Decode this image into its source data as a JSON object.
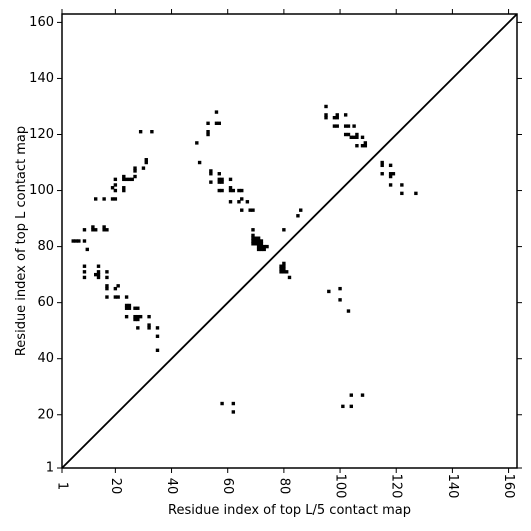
{
  "chart_data": {
    "type": "scatter",
    "title": "",
    "xlabel": "Residue index of top L/5 contact map",
    "ylabel": "Residue index of top L contact map",
    "xlim": [
      1,
      163
    ],
    "ylim": [
      1,
      163
    ],
    "xticks": [
      1,
      20,
      40,
      60,
      80,
      100,
      120,
      140,
      160
    ],
    "yticks": [
      1,
      20,
      40,
      60,
      80,
      100,
      120,
      140,
      160
    ],
    "xtick_labels": [
      "1",
      "20",
      "40",
      "60",
      "80",
      "100",
      "120",
      "140",
      "160"
    ],
    "ytick_labels": [
      "1",
      "20",
      "40",
      "60",
      "80",
      "100",
      "120",
      "140",
      "160"
    ],
    "grid": false,
    "diagonal": [
      [
        1,
        1
      ],
      [
        163,
        163
      ]
    ],
    "marker_color": "#000000",
    "series": [
      {
        "values": [
          [
            5,
            82
          ],
          [
            6,
            82
          ],
          [
            7,
            82
          ],
          [
            9,
            82
          ],
          [
            9,
            86
          ],
          [
            9,
            73
          ],
          [
            9,
            71
          ],
          [
            9,
            69
          ],
          [
            10,
            79
          ],
          [
            12,
            87
          ],
          [
            12,
            86
          ],
          [
            13,
            86
          ],
          [
            13,
            97
          ],
          [
            14,
            73
          ],
          [
            14,
            71
          ],
          [
            14,
            70
          ],
          [
            14,
            69
          ],
          [
            13,
            70
          ],
          [
            16,
            97
          ],
          [
            16,
            87
          ],
          [
            16,
            86
          ],
          [
            17,
            86
          ],
          [
            17,
            71
          ],
          [
            17,
            69
          ],
          [
            17,
            66
          ],
          [
            17,
            65
          ],
          [
            17,
            62
          ],
          [
            19,
            101
          ],
          [
            20,
            102
          ],
          [
            20,
            100
          ],
          [
            19,
            97
          ],
          [
            20,
            97
          ],
          [
            20,
            104
          ],
          [
            20,
            65
          ],
          [
            21,
            66
          ],
          [
            20,
            62
          ],
          [
            21,
            62
          ],
          [
            23,
            105
          ],
          [
            23,
            104
          ],
          [
            23,
            101
          ],
          [
            23,
            100
          ],
          [
            24,
            104
          ],
          [
            25,
            104
          ],
          [
            26,
            104
          ],
          [
            27,
            105
          ],
          [
            27,
            107
          ],
          [
            27,
            108
          ],
          [
            24,
            62
          ],
          [
            24,
            59
          ],
          [
            24,
            58
          ],
          [
            25,
            59
          ],
          [
            25,
            58
          ],
          [
            24,
            55
          ],
          [
            27,
            58
          ],
          [
            28,
            58
          ],
          [
            27,
            55
          ],
          [
            28,
            55
          ],
          [
            29,
            55
          ],
          [
            27,
            54
          ],
          [
            28,
            54
          ],
          [
            28,
            51
          ],
          [
            29,
            121
          ],
          [
            30,
            108
          ],
          [
            31,
            110
          ],
          [
            31,
            111
          ],
          [
            33,
            121
          ],
          [
            32,
            55
          ],
          [
            32,
            52
          ],
          [
            32,
            51
          ],
          [
            35,
            51
          ],
          [
            35,
            48
          ],
          [
            35,
            43
          ],
          [
            49,
            117
          ],
          [
            50,
            110
          ],
          [
            53,
            124
          ],
          [
            53,
            121
          ],
          [
            53,
            120
          ],
          [
            54,
            107
          ],
          [
            54,
            106
          ],
          [
            54,
            103
          ],
          [
            56,
            128
          ],
          [
            56,
            124
          ],
          [
            57,
            124
          ],
          [
            57,
            106
          ],
          [
            57,
            104
          ],
          [
            57,
            103
          ],
          [
            57,
            100
          ],
          [
            58,
            104
          ],
          [
            58,
            103
          ],
          [
            58,
            100
          ],
          [
            58,
            24
          ],
          [
            62,
            24
          ],
          [
            62,
            21
          ],
          [
            61,
            104
          ],
          [
            61,
            101
          ],
          [
            61,
            100
          ],
          [
            61,
            96
          ],
          [
            62,
            100
          ],
          [
            64,
            100
          ],
          [
            65,
            100
          ],
          [
            64,
            96
          ],
          [
            65,
            97
          ],
          [
            65,
            93
          ],
          [
            67,
            96
          ],
          [
            68,
            93
          ],
          [
            69,
            93
          ],
          [
            69,
            86
          ],
          [
            69,
            84
          ],
          [
            69,
            83
          ],
          [
            69,
            82
          ],
          [
            69,
            81
          ],
          [
            70,
            83
          ],
          [
            70,
            82
          ],
          [
            70,
            81
          ],
          [
            71,
            83
          ],
          [
            71,
            82
          ],
          [
            71,
            81
          ],
          [
            71,
            80
          ],
          [
            71,
            79
          ],
          [
            72,
            82
          ],
          [
            72,
            81
          ],
          [
            72,
            80
          ],
          [
            72,
            79
          ],
          [
            73,
            80
          ],
          [
            73,
            79
          ],
          [
            74,
            80
          ],
          [
            80,
            86
          ],
          [
            79,
            73
          ],
          [
            79,
            72
          ],
          [
            79,
            71
          ],
          [
            80,
            74
          ],
          [
            80,
            73
          ],
          [
            80,
            72
          ],
          [
            80,
            71
          ],
          [
            81,
            71
          ],
          [
            82,
            69
          ],
          [
            85,
            91
          ],
          [
            86,
            93
          ],
          [
            95,
            130
          ],
          [
            95,
            127
          ],
          [
            95,
            126
          ],
          [
            98,
            126
          ],
          [
            99,
            127
          ],
          [
            99,
            126
          ],
          [
            98,
            123
          ],
          [
            99,
            123
          ],
          [
            96,
            64
          ],
          [
            100,
            65
          ],
          [
            100,
            61
          ],
          [
            101,
            23
          ],
          [
            103,
            57
          ],
          [
            104,
            27
          ],
          [
            104,
            23
          ],
          [
            108,
            27
          ],
          [
            102,
            127
          ],
          [
            102,
            123
          ],
          [
            103,
            123
          ],
          [
            102,
            120
          ],
          [
            103,
            120
          ],
          [
            105,
            123
          ],
          [
            104,
            119
          ],
          [
            105,
            119
          ],
          [
            106,
            120
          ],
          [
            106,
            119
          ],
          [
            106,
            116
          ],
          [
            108,
            119
          ],
          [
            108,
            116
          ],
          [
            109,
            117
          ],
          [
            109,
            116
          ],
          [
            115,
            110
          ],
          [
            115,
            109
          ],
          [
            115,
            106
          ],
          [
            118,
            109
          ],
          [
            118,
            106
          ],
          [
            118,
            105
          ],
          [
            119,
            106
          ],
          [
            118,
            102
          ],
          [
            122,
            102
          ],
          [
            122,
            99
          ],
          [
            127,
            99
          ]
        ]
      }
    ]
  }
}
